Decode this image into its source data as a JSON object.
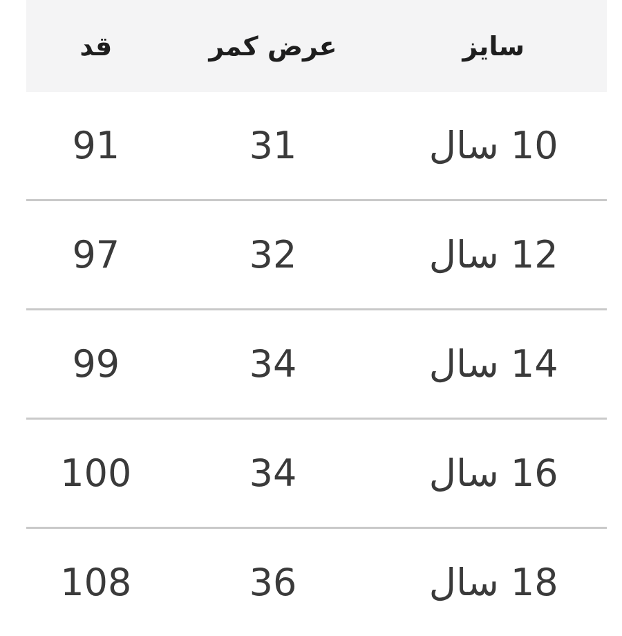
{
  "page": {
    "background": "#ffffff"
  },
  "size_table": {
    "direction": "rtl",
    "columns": [
      {
        "id": "size",
        "label": "سایز"
      },
      {
        "id": "waist",
        "label": "عرض کمر"
      },
      {
        "id": "height",
        "label": "قد"
      }
    ],
    "rows": [
      {
        "size": "10 سال",
        "waist": "31",
        "height": "91"
      },
      {
        "size": "12 سال",
        "waist": "32",
        "height": "97"
      },
      {
        "size": "14 سال",
        "waist": "34",
        "height": "99"
      },
      {
        "size": "16 سال",
        "waist": "34",
        "height": "100"
      },
      {
        "size": "18 سال",
        "waist": "36",
        "height": "108"
      }
    ],
    "colors": {
      "header_bg": "#f4f4f5",
      "header_text": "#1e1e1e",
      "cell_text": "#3a3a3a",
      "divider": "#c9c9c9",
      "page_bg": "#ffffff"
    }
  }
}
